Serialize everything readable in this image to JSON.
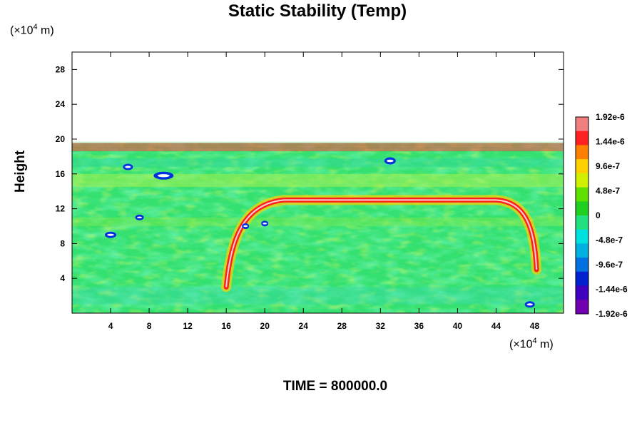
{
  "chart_data": {
    "type": "heatmap",
    "title": "Static Stability (Temp)",
    "xlabel": "",
    "ylabel": "Height",
    "x_unit": "(×10⁴ m)",
    "y_unit": "(×10⁴ m)",
    "xlim": [
      0,
      51
    ],
    "ylim": [
      0,
      30
    ],
    "x_ticks": [
      4,
      8,
      12,
      16,
      20,
      24,
      28,
      32,
      36,
      40,
      44,
      48
    ],
    "y_ticks": [
      4,
      8,
      12,
      16,
      20,
      24,
      28
    ],
    "data_top_height": 19.7,
    "colorbar": {
      "labels": [
        "1.92e-6",
        "1.44e-6",
        "9.6e-7",
        "4.8e-7",
        "0",
        "-4.8e-7",
        "-9.6e-7",
        "-1.44e-6",
        "-1.92e-6"
      ],
      "min": -1.92e-06,
      "max": 1.92e-06,
      "colors": [
        "#f08080",
        "#ff2020",
        "#ff8000",
        "#ffd000",
        "#d0f000",
        "#60e000",
        "#20d020",
        "#20e080",
        "#00e0e0",
        "#00b0e0",
        "#0070e0",
        "#0020d0",
        "#4000c0",
        "#7000b0"
      ]
    },
    "features": [
      {
        "name": "high stability layer",
        "x_range": [
          17,
          47
        ],
        "height": 13.0,
        "value": 1.92e-06
      },
      {
        "name": "tropopause band",
        "x_range": [
          0,
          51
        ],
        "height": 19.2,
        "value": 1.44e-06
      }
    ],
    "grid": false
  },
  "footer": {
    "time_label": "TIME = 800000.0"
  }
}
